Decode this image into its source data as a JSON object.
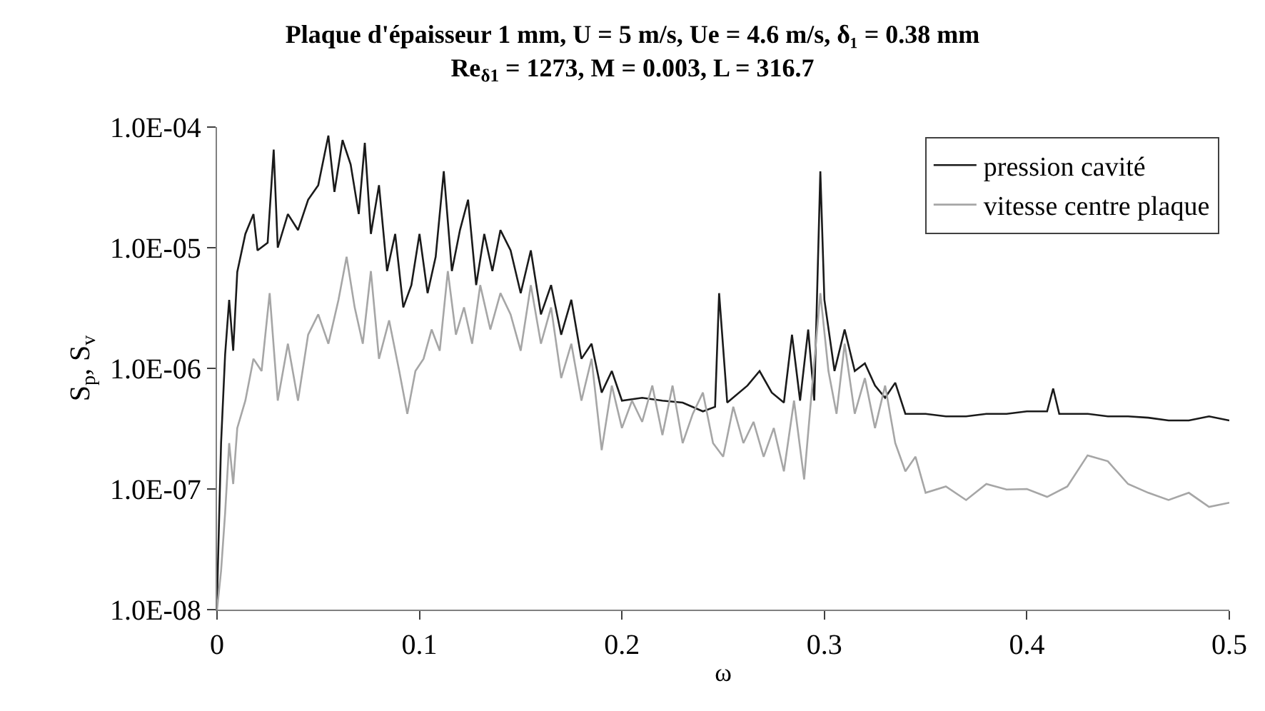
{
  "chart_data": {
    "type": "line",
    "title": "Plaque d'épaisseur 1 mm, U = 5 m/s, Ue = 4.6 m/s, δ₁ = 0.38 mm\nRe$_{δ1}$ = 1273, M = 0.003, L = 316.7",
    "xlabel": "ω",
    "ylabel": "S$_{p}$, S$_{v}$",
    "xlim": [
      0,
      0.5
    ],
    "xticks": [
      0,
      0.1,
      0.2,
      0.3,
      0.4,
      0.5
    ],
    "ylim": [
      1e-08,
      0.0001
    ],
    "yticks": [
      {
        "value": 1e-08,
        "label": "1.0E-08"
      },
      {
        "value": 1e-07,
        "label": "1.0E-07"
      },
      {
        "value": 1e-06,
        "label": "1.0E-06"
      },
      {
        "value": 1e-05,
        "label": "1.0E-05"
      },
      {
        "value": 0.0001,
        "label": "1.0E-04"
      }
    ],
    "log": "y",
    "legend": "top right",
    "marker": "none",
    "line_style": "solid",
    "series": [
      {
        "name": "pression cavité",
        "color": "#1a1a1a",
        "x": [
          0,
          0.002,
          0.004,
          0.006,
          0.008,
          0.01,
          0.014,
          0.018,
          0.02,
          0.025,
          0.028,
          0.03,
          0.035,
          0.04,
          0.045,
          0.05,
          0.055,
          0.058,
          0.062,
          0.066,
          0.07,
          0.073,
          0.076,
          0.08,
          0.084,
          0.088,
          0.092,
          0.096,
          0.1,
          0.104,
          0.108,
          0.112,
          0.116,
          0.12,
          0.124,
          0.128,
          0.132,
          0.136,
          0.14,
          0.145,
          0.15,
          0.155,
          0.16,
          0.165,
          0.17,
          0.175,
          0.18,
          0.185,
          0.19,
          0.195,
          0.2,
          0.21,
          0.22,
          0.23,
          0.24,
          0.246,
          0.248,
          0.252,
          0.262,
          0.268,
          0.274,
          0.28,
          0.284,
          0.288,
          0.292,
          0.295,
          0.298,
          0.3,
          0.305,
          0.31,
          0.315,
          0.32,
          0.325,
          0.33,
          0.335,
          0.34,
          0.35,
          0.36,
          0.37,
          0.38,
          0.39,
          0.4,
          0.41,
          0.413,
          0.416,
          0.43,
          0.44,
          0.45,
          0.46,
          0.47,
          0.48,
          0.49,
          0.5
        ],
        "values": [
          1.2e-08,
          2.4e-07,
          1.3e-06,
          3.7e-06,
          1.4e-06,
          6.3e-06,
          1.3e-05,
          1.9e-05,
          9.5e-06,
          1.1e-05,
          6.5e-05,
          1e-05,
          1.9e-05,
          1.4e-05,
          2.5e-05,
          3.3e-05,
          8.5e-05,
          2.9e-05,
          7.8e-05,
          4.9e-05,
          1.9e-05,
          7.4e-05,
          1.3e-05,
          3.3e-05,
          6.4e-06,
          1.3e-05,
          3.2e-06,
          4.9e-06,
          1.3e-05,
          4.2e-06,
          8.4e-06,
          4.3e-05,
          6.4e-06,
          1.4e-05,
          2.5e-05,
          4.9e-06,
          1.3e-05,
          6.4e-06,
          1.4e-05,
          9.5e-06,
          4.2e-06,
          9.5e-06,
          2.8e-06,
          4.9e-06,
          1.9e-06,
          3.7e-06,
          1.2e-06,
          1.6e-06,
          6.3e-07,
          9.5e-07,
          5.4e-07,
          5.7e-07,
          5.4e-07,
          5.2e-07,
          4.4e-07,
          4.8e-07,
          4.2e-06,
          5.2e-07,
          7.2e-07,
          9.5e-07,
          6.3e-07,
          5.2e-07,
          1.9e-06,
          5.4e-07,
          2.1e-06,
          5.4e-07,
          4.3e-05,
          3.7e-06,
          9.5e-07,
          2.1e-06,
          9.5e-07,
          1.1e-06,
          7.2e-07,
          5.7e-07,
          7.6e-07,
          4.2e-07,
          4.2e-07,
          4e-07,
          4e-07,
          4.2e-07,
          4.2e-07,
          4.4e-07,
          4.4e-07,
          6.8e-07,
          4.2e-07,
          4.2e-07,
          4e-07,
          4e-07,
          3.9e-07,
          3.7e-07,
          3.7e-07,
          4e-07,
          3.7e-07
        ]
      },
      {
        "name": "vitesse centre plaque",
        "color": "#a6a6a6",
        "x": [
          0,
          0.002,
          0.004,
          0.006,
          0.008,
          0.01,
          0.014,
          0.018,
          0.022,
          0.026,
          0.03,
          0.035,
          0.04,
          0.045,
          0.05,
          0.055,
          0.06,
          0.064,
          0.068,
          0.072,
          0.076,
          0.08,
          0.085,
          0.09,
          0.094,
          0.098,
          0.102,
          0.106,
          0.11,
          0.114,
          0.118,
          0.122,
          0.126,
          0.13,
          0.135,
          0.14,
          0.145,
          0.15,
          0.155,
          0.16,
          0.165,
          0.17,
          0.175,
          0.18,
          0.185,
          0.19,
          0.195,
          0.2,
          0.205,
          0.21,
          0.215,
          0.22,
          0.225,
          0.23,
          0.235,
          0.24,
          0.245,
          0.25,
          0.255,
          0.26,
          0.265,
          0.27,
          0.275,
          0.28,
          0.285,
          0.29,
          0.294,
          0.298,
          0.302,
          0.306,
          0.31,
          0.315,
          0.32,
          0.325,
          0.33,
          0.335,
          0.34,
          0.345,
          0.35,
          0.36,
          0.37,
          0.38,
          0.39,
          0.4,
          0.41,
          0.42,
          0.43,
          0.44,
          0.45,
          0.46,
          0.47,
          0.48,
          0.49,
          0.5
        ],
        "values": [
          1e-08,
          2.1e-08,
          6.3e-08,
          2.4e-07,
          1.1e-07,
          3.2e-07,
          5.4e-07,
          1.2e-06,
          9.5e-07,
          4.2e-06,
          5.4e-07,
          1.6e-06,
          5.4e-07,
          1.9e-06,
          2.8e-06,
          1.6e-06,
          3.7e-06,
          8.4e-06,
          3.2e-06,
          1.6e-06,
          6.4e-06,
          1.2e-06,
          2.5e-06,
          9.5e-07,
          4.2e-07,
          9.5e-07,
          1.2e-06,
          2.1e-06,
          1.4e-06,
          6.4e-06,
          1.9e-06,
          3.2e-06,
          1.6e-06,
          4.9e-06,
          2.1e-06,
          4.2e-06,
          2.8e-06,
          1.4e-06,
          4.9e-06,
          1.6e-06,
          3.2e-06,
          8.3e-07,
          1.6e-06,
          5.4e-07,
          1.2e-06,
          2.1e-07,
          7.2e-07,
          3.2e-07,
          5.4e-07,
          3.6e-07,
          7.2e-07,
          2.8e-07,
          7.2e-07,
          2.4e-07,
          4.2e-07,
          6.3e-07,
          2.4e-07,
          1.85e-07,
          4.8e-07,
          2.4e-07,
          3.6e-07,
          1.85e-07,
          3.2e-07,
          1.4e-07,
          5.4e-07,
          1.2e-07,
          7.2e-07,
          4.2e-06,
          9.5e-07,
          4.2e-07,
          1.6e-06,
          4.2e-07,
          8.3e-07,
          3.2e-07,
          7.2e-07,
          2.4e-07,
          1.4e-07,
          1.85e-07,
          9.3e-08,
          1.05e-07,
          8.1e-08,
          1.1e-07,
          9.9e-08,
          1e-07,
          8.6e-08,
          1.05e-07,
          1.9e-07,
          1.7e-07,
          1.1e-07,
          9.3e-08,
          8.1e-08,
          9.3e-08,
          7.1e-08,
          7.7e-08
        ]
      }
    ]
  }
}
